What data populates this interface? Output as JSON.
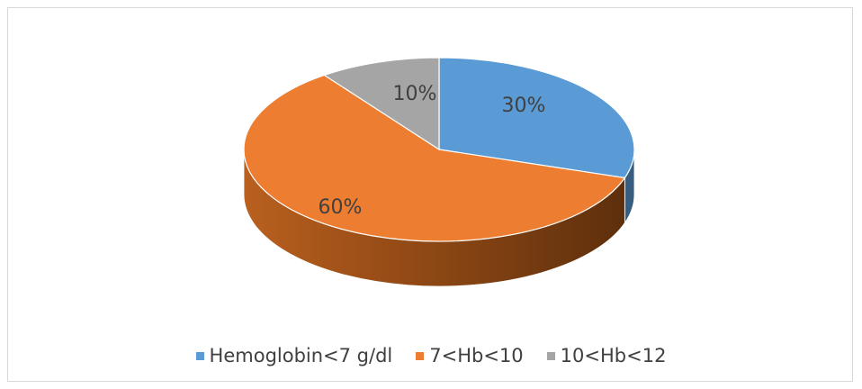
{
  "chart_data": {
    "type": "pie",
    "style": "3d",
    "categories": [
      "Hemoglobin<7 g/dl",
      "7<Hb<10",
      "10<Hb<12"
    ],
    "values": [
      30,
      60,
      10
    ],
    "labels": [
      "30%",
      "60%",
      "10%"
    ],
    "colors": [
      "#5b9bd5",
      "#ed7d31",
      "#a5a5a5"
    ],
    "legend": {
      "position": "bottom"
    }
  }
}
